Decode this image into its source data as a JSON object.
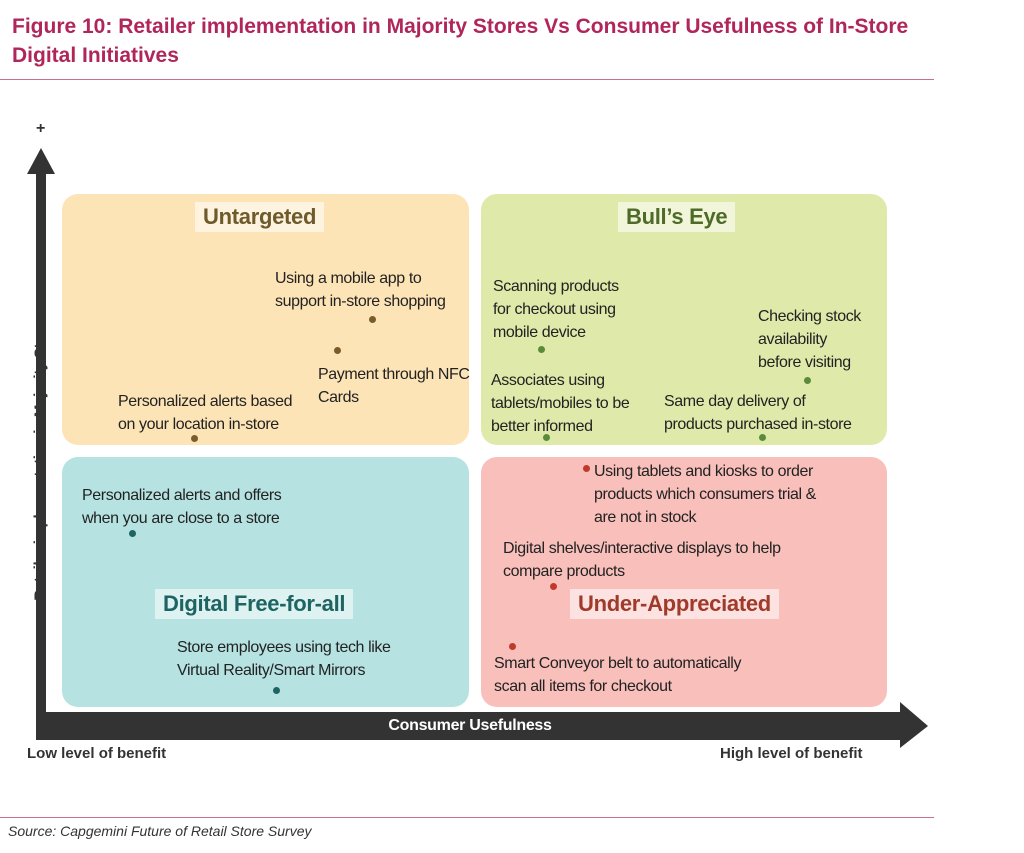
{
  "figure": {
    "title": "Figure 10: Retailer implementation in Majority Stores Vs Consumer Usefulness of In-Store Digital Initiatives",
    "source": "Source: Capgemini Future of Retail Store Survey",
    "accent_color": "#b0255a"
  },
  "axes": {
    "y_label": "Retailer implementation in Majority Stores",
    "y_plus": "+",
    "x_label": "Consumer Usefulness",
    "x_low": "Low level of benefit",
    "x_high": "High level of benefit"
  },
  "quadrants": {
    "untargeted": {
      "title": "Untargeted",
      "color": "#fde4b6",
      "items": [
        {
          "lines": [
            "Using a mobile app to",
            "support in-store shopping"
          ]
        },
        {
          "lines": [
            "Payment through NFC",
            "Cards"
          ]
        },
        {
          "lines": [
            "Personalized alerts based",
            "on your location in-store"
          ]
        }
      ]
    },
    "bulls_eye": {
      "title": "Bull’s Eye",
      "color": "#dfe9aa",
      "items": [
        {
          "lines": [
            "Scanning products",
            "for checkout using",
            "mobile device"
          ]
        },
        {
          "lines": [
            "Checking stock",
            "availability",
            "before visiting"
          ]
        },
        {
          "lines": [
            "Associates using",
            "tablets/mobiles to be",
            "better informed"
          ]
        },
        {
          "lines": [
            "Same day delivery of",
            "products purchased in-store"
          ]
        }
      ]
    },
    "digital_free": {
      "title": "Digital Free-for-all",
      "color": "#b6e2e2",
      "items": [
        {
          "lines": [
            "Personalized alerts and offers",
            "when you are close to a store"
          ]
        },
        {
          "lines": [
            "Store employees using tech like",
            "Virtual Reality/Smart Mirrors"
          ]
        }
      ]
    },
    "under_appreciated": {
      "title": "Under-Appreciated",
      "color": "#f8bfbb",
      "items": [
        {
          "lines": [
            "Using tablets and kiosks to order",
            "products which consumers trial &",
            "are not in stock"
          ]
        },
        {
          "lines": [
            "Digital shelves/interactive displays to help",
            "compare products"
          ]
        },
        {
          "lines": [
            "Smart Conveyor belt to automatically",
            "scan all items for checkout"
          ]
        }
      ]
    }
  }
}
